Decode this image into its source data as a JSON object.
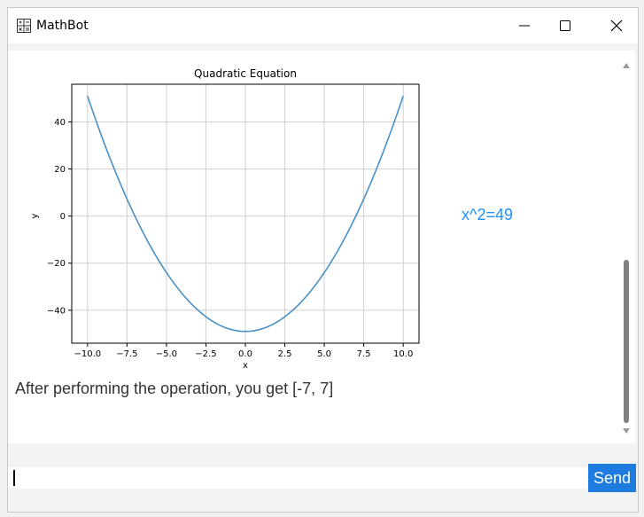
{
  "window": {
    "title": "MathBot"
  },
  "titlebar": {
    "icon": "calculator-icon",
    "minimize_icon": "minimize-icon",
    "maximize_icon": "maximize-icon",
    "close_icon": "close-icon"
  },
  "chat": {
    "result": "x^2=49",
    "message": "After performing the operation, you get [-7, 7]"
  },
  "input": {
    "value": "",
    "placeholder": ""
  },
  "send_button": {
    "label": "Send"
  },
  "colors": {
    "line": "#4a90c4",
    "result_text": "#1e90ff",
    "send_button": "#1e7be0"
  },
  "chart_data": {
    "type": "line",
    "title": "Quadratic Equation",
    "xlabel": "x",
    "ylabel": "y",
    "function": "x^2 - 49",
    "x_range": [
      -10,
      10
    ],
    "xlim": [
      -11,
      11
    ],
    "ylim": [
      -54,
      56
    ],
    "xticks": [
      -10.0,
      -7.5,
      -5.0,
      -2.5,
      0.0,
      2.5,
      5.0,
      7.5,
      10.0
    ],
    "xtick_labels": [
      "−10.0",
      "−7.5",
      "−5.0",
      "−2.5",
      "0.0",
      "2.5",
      "5.0",
      "7.5",
      "10.0"
    ],
    "yticks": [
      -40,
      -20,
      0,
      20,
      40
    ],
    "ytick_labels": [
      "−40",
      "−20",
      "0",
      "20",
      "40"
    ],
    "grid": true
  }
}
